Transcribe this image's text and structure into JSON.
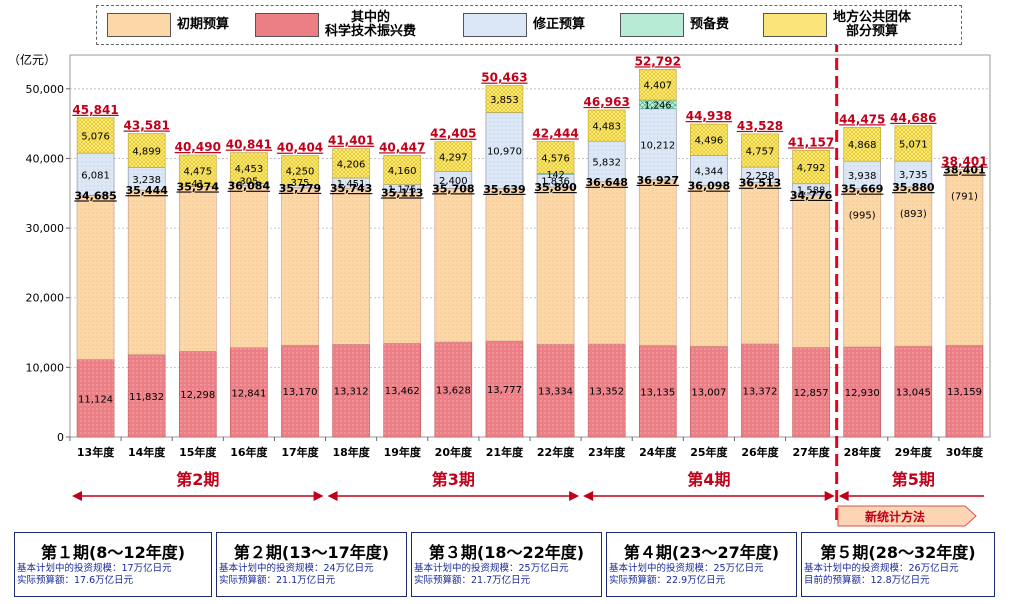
{
  "chart_data": {
    "type": "bar",
    "stacked": true,
    "unit_label": "（亿元）",
    "ylim": [
      0,
      55000
    ],
    "yticks": [
      "0",
      "10,000",
      "20,000",
      "30,000",
      "40,000",
      "50,000"
    ],
    "ytick_values": [
      0,
      10000,
      20000,
      30000,
      40000,
      50000
    ],
    "categories": [
      "13年度",
      "14年度",
      "15年度",
      "16年度",
      "17年度",
      "18年度",
      "19年度",
      "20年度",
      "21年度",
      "22年度",
      "23年度",
      "24年度",
      "25年度",
      "26年度",
      "27年度",
      "28年度",
      "29年度",
      "30年度"
    ],
    "initial_totals": [
      34685,
      35444,
      35974,
      36084,
      35779,
      35743,
      35113,
      35708,
      35639,
      35890,
      36648,
      36927,
      36098,
      36513,
      34776,
      35669,
      35880,
      38401
    ],
    "initial_labels": [
      "34,685",
      "35,444",
      "35,974",
      "36,084",
      "35,779",
      "35,743",
      "35,113",
      "35,708",
      "35,639",
      "35,890",
      "36,648",
      "36,927",
      "36,098",
      "36,513",
      "34,776",
      "35,669",
      "35,880",
      "38,401"
    ],
    "science_values": [
      11124,
      11832,
      12298,
      12841,
      13170,
      13312,
      13462,
      13628,
      13777,
      13334,
      13352,
      13135,
      13007,
      13372,
      12857,
      12930,
      13045,
      13159
    ],
    "science_labels": [
      "11,124",
      "11,832",
      "12,298",
      "12,841",
      "13,170",
      "13,312",
      "13,462",
      "13,628",
      "13,777",
      "13,334",
      "13,352",
      "13,135",
      "13,007",
      "13,372",
      "12,857",
      "12,930",
      "13,045",
      "13,159"
    ],
    "supplementary_values": [
      6081,
      3238,
      41,
      305,
      375,
      1451,
      1175,
      2400,
      10970,
      1836,
      5832,
      10212,
      4344,
      2258,
      1588,
      3938,
      3735,
      0
    ],
    "supplementary_labels": [
      "6,081",
      "3,238",
      "41",
      "305",
      "375",
      "1,451",
      "1,175",
      "2,400",
      "10,970",
      "1,836",
      "5,832",
      "10,212",
      "4,344",
      "2,258",
      "1,588",
      "3,938",
      "3,735",
      ""
    ],
    "reserve_values": [
      0,
      0,
      0,
      0,
      0,
      0,
      0,
      0,
      0,
      142,
      0,
      1246,
      0,
      0,
      0,
      0,
      0,
      0
    ],
    "reserve_labels": [
      "",
      "",
      "",
      "",
      "",
      "",
      "",
      "",
      "",
      "142",
      "",
      "1,246",
      "",
      "",
      "",
      "",
      "",
      ""
    ],
    "local_values": [
      5076,
      4899,
      4475,
      4453,
      4250,
      4206,
      4160,
      4297,
      3853,
      4576,
      4483,
      4407,
      4496,
      4757,
      4792,
      4868,
      5071,
      0
    ],
    "local_labels": [
      "5,076",
      "4,899",
      "4,475",
      "4,453",
      "4,250",
      "4,206",
      "4,160",
      "4,297",
      "3,853",
      "4,576",
      "4,483",
      "4,407",
      "4,496",
      "4,757",
      "4,792",
      "4,868",
      "5,071",
      ""
    ],
    "totals": [
      45841,
      43581,
      40490,
      40841,
      40404,
      41401,
      40447,
      42405,
      50463,
      42444,
      46963,
      52792,
      44938,
      43528,
      41157,
      44475,
      44686,
      38401
    ],
    "total_labels": [
      "45,841",
      "43,581",
      "40,490",
      "40,841",
      "40,404",
      "41,401",
      "40,447",
      "42,405",
      "50,463",
      "42,444",
      "46,963",
      "52,792",
      "44,938",
      "43,528",
      "41,157",
      "44,475",
      "44,686",
      "38,401"
    ],
    "paren_notes": [
      "",
      "",
      "",
      "",
      "",
      "",
      "",
      "",
      "",
      "",
      "",
      "",
      "",
      "",
      "",
      "(995)",
      "(893)",
      "(791)"
    ],
    "colors": {
      "initial": "#fcd8a8",
      "science": "#ec7e86",
      "supplementary": "#dbe6f6",
      "reserve": "#b7ebd6",
      "local": "#fbe57a",
      "total_text": "#c0001a",
      "arrow": "#c0001a",
      "new_method_bg": "#fcd5b5",
      "new_method_border": "#d9534f"
    },
    "phases": [
      {
        "label": "第2期"
      },
      {
        "label": "第3期"
      },
      {
        "label": "第4期"
      },
      {
        "label": "第5期"
      }
    ],
    "new_method_label": "新统计方法"
  },
  "legend": [
    {
      "key": "initial",
      "lines": [
        "初期预算"
      ]
    },
    {
      "key": "science",
      "lines": [
        "其中的",
        "科学技术振兴费"
      ]
    },
    {
      "key": "supplementary",
      "lines": [
        "修正预算"
      ]
    },
    {
      "key": "reserve",
      "lines": [
        "预备费"
      ]
    },
    {
      "key": "local",
      "lines": [
        "地方公共团体",
        "部分预算"
      ]
    }
  ],
  "periods": [
    {
      "title": "第１期(8～12年度)",
      "line1": "基本计划中的投资规模：17万亿日元",
      "line2": "实际预算额：17.6万亿日元"
    },
    {
      "title": "第２期(13～17年度)",
      "line1": "基本计划中的投资规模：24万亿日元",
      "line2": "实际预算额：21.1万亿日元"
    },
    {
      "title": "第３期(18～22年度)",
      "line1": "基本计划中的投资规模：25万亿日元",
      "line2": "实际预算额：21.7万亿日元"
    },
    {
      "title": "第４期(23～27年度)",
      "line1": "基本计划中的投资规模：25万亿日元",
      "line2": "实际预算额：22.9万亿日元"
    },
    {
      "title": "第５期(28～32年度)",
      "line1": "基本计划中的投资规模：26万亿日元",
      "line2": "目前的预算额：12.8万亿日元"
    }
  ]
}
